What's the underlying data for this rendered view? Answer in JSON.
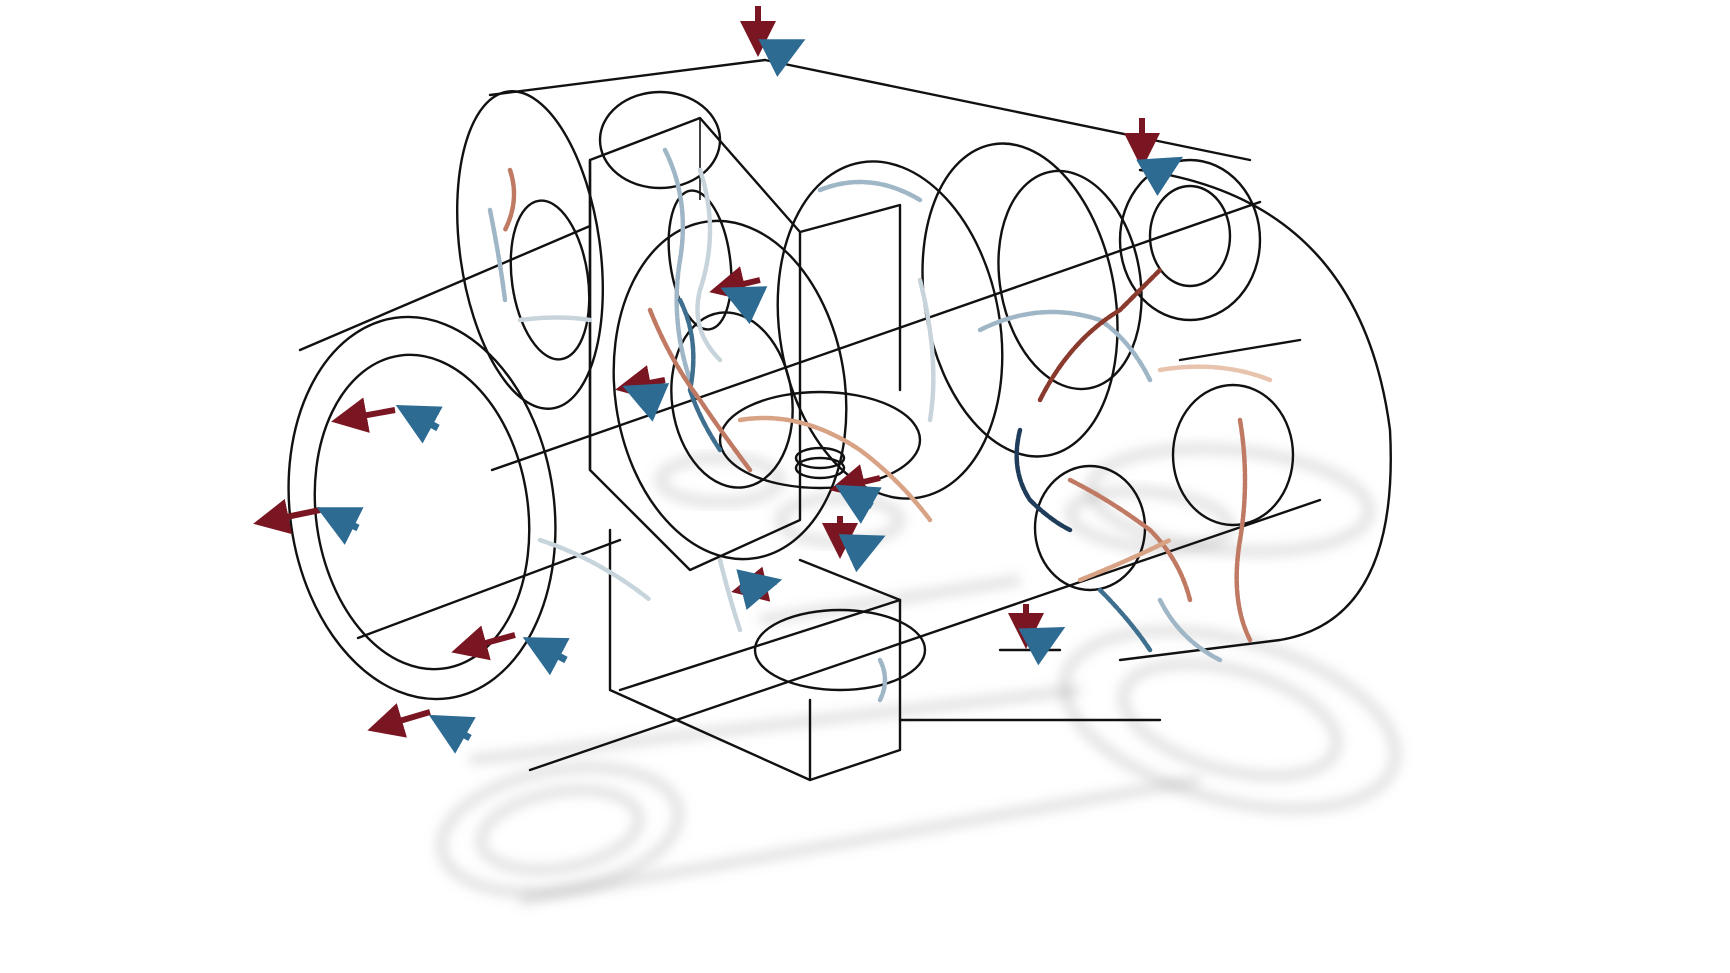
{
  "colors": {
    "background": "#ffffff",
    "wireframe": "#111111",
    "shadow": "#9a9a9a",
    "force_arrow": "#7a1522",
    "moment_arrow": "#2e6b93",
    "strand_palette": [
      "#c8d4dc",
      "#9fb6c6",
      "#3f6f8f",
      "#1f3d5a",
      "#d8a285",
      "#c07a63",
      "#8a3a2c",
      "#e8c3ae"
    ]
  },
  "icons": {
    "force": "red-force-arrow-icon",
    "moment": "blue-moment-arrow-icon"
  }
}
